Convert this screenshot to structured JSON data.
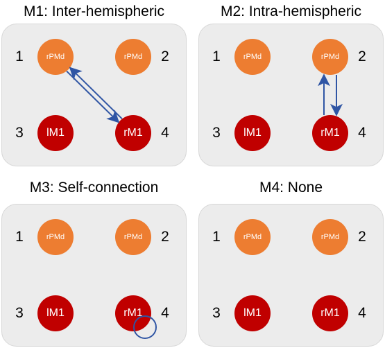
{
  "panels": [
    {
      "title": "M1: Inter-hemispheric",
      "connection": "inter"
    },
    {
      "title": "M2: Intra-hemispheric",
      "connection": "intra"
    },
    {
      "title": "M3: Self-connection",
      "connection": "self"
    },
    {
      "title": "M4: None",
      "connection": "none"
    }
  ],
  "nodes": {
    "tl": "rPMd",
    "tr": "rPMd",
    "bl": "lM1",
    "br": "rM1"
  },
  "numbers": {
    "tl": "1",
    "tr": "2",
    "bl": "3",
    "br": "4"
  },
  "colors": {
    "pmd": "#ed7d31",
    "m1": "#c00000",
    "arrow": "#2f55a4",
    "panel": "#ececec"
  }
}
